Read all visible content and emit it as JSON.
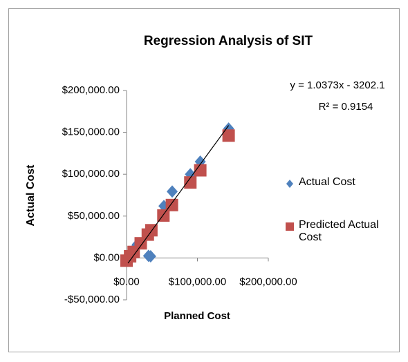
{
  "chart_data": {
    "type": "scatter",
    "title": "Regression Analysis of SIT",
    "xlabel": "Planned Cost",
    "ylabel": "Actual Cost",
    "equation": "y = 1.0373x - 3202.1",
    "r_squared": "R² = 0.9154",
    "xlim": [
      0,
      200000
    ],
    "ylim": [
      -50000,
      200000
    ],
    "xticks": [
      {
        "value": 0,
        "label": "$0.00"
      },
      {
        "value": 100000,
        "label": "$100,000.00"
      },
      {
        "value": 200000,
        "label": "$200,000.00"
      }
    ],
    "yticks": [
      {
        "value": -50000,
        "label": "-$50,000.00"
      },
      {
        "value": 0,
        "label": "$0.00"
      },
      {
        "value": 50000,
        "label": "$50,000.00"
      },
      {
        "value": 100000,
        "label": "$100,000.00"
      },
      {
        "value": 150000,
        "label": "$150,000.00"
      },
      {
        "value": 200000,
        "label": "$200,000.00"
      }
    ],
    "series": [
      {
        "name": "Actual Cost",
        "color": "#4f81bd",
        "marker": "diamond",
        "x": [
          2000,
          5000,
          10000,
          15000,
          31000,
          34000,
          52700,
          64400,
          90000,
          104000,
          144000
        ],
        "values": [
          1000,
          3000,
          10000,
          16000,
          2500,
          2000,
          62000,
          79300,
          100000,
          115000,
          154500
        ]
      },
      {
        "name": "Predicted Actual Cost",
        "color": "#c0504d",
        "marker": "square",
        "x": [
          0,
          5000,
          10000,
          20000,
          30000,
          35000,
          52000,
          64000,
          90000,
          104000,
          144000
        ],
        "values": [
          -3202,
          2000,
          7170,
          17500,
          27900,
          33100,
          50700,
          63200,
          90150,
          104700,
          146170
        ]
      }
    ]
  }
}
